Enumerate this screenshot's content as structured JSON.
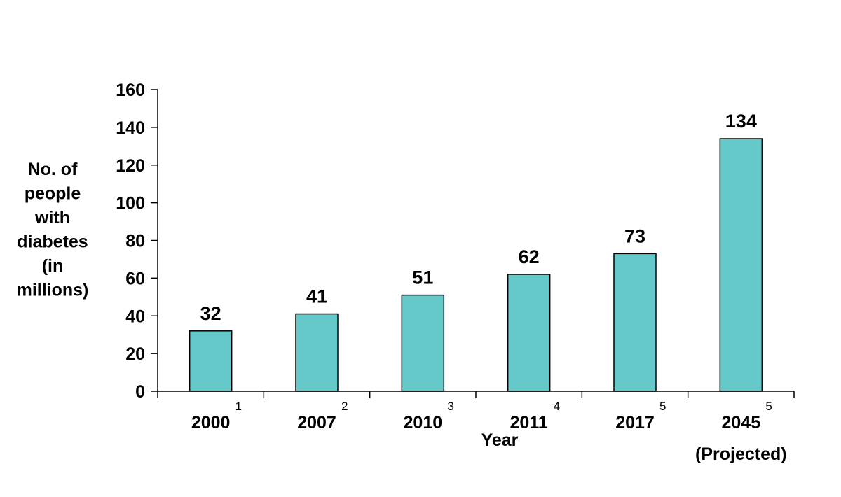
{
  "chart_data": {
    "type": "bar",
    "categories": [
      "2000",
      "2007",
      "2010",
      "2011",
      "2017",
      "2045"
    ],
    "superscripts": [
      "1",
      "2",
      "3",
      "4",
      "5",
      "5"
    ],
    "category_notes": [
      "",
      "",
      "",
      "",
      "",
      "(Projected)"
    ],
    "values": [
      32,
      41,
      51,
      62,
      73,
      134
    ],
    "data_labels": [
      "32",
      "41",
      "51",
      "62",
      "73",
      "134"
    ],
    "xlabel": "Year",
    "ylabel_lines": [
      "No. of",
      "people",
      "with",
      "diabetes",
      "(in",
      "millions)"
    ],
    "ylim": [
      0,
      160
    ],
    "yticks": [
      0,
      20,
      40,
      60,
      80,
      100,
      120,
      140,
      160
    ],
    "grid": false,
    "legend": "none",
    "colors": {
      "bar_fill": "#66c9c9",
      "bar_stroke": "#000000",
      "axis": "#000000"
    }
  }
}
